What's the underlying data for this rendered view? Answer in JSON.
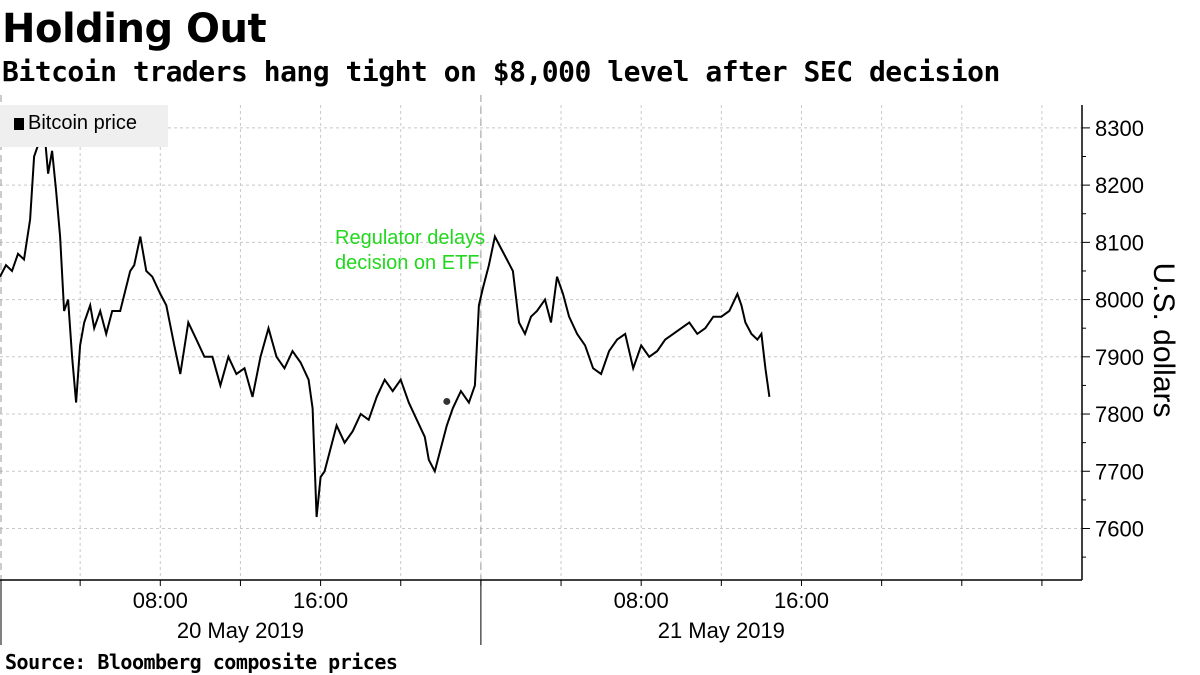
{
  "title": "Holding Out",
  "subtitle": "Bitcoin traders hang tight on $8,000 level after SEC decision",
  "source": "Source: Bloomberg composite prices",
  "colors": {
    "line": "#000000",
    "annotation": "#22d81e",
    "grid": "#c8c8c8",
    "legend_bg": "#efefef"
  },
  "chart_data": {
    "type": "line",
    "title": "Holding Out",
    "subtitle": "Bitcoin traders hang tight on $8,000 level after SEC decision",
    "ylabel": "U.S. dollars",
    "xlabel": "",
    "ylim": [
      7510,
      8340
    ],
    "yticks": [
      7600,
      7700,
      7800,
      7900,
      8000,
      8100,
      8200,
      8300
    ],
    "xlim_hours": [
      0,
      54
    ],
    "xticks": [
      {
        "hour": 8,
        "label": "08:00"
      },
      {
        "hour": 16,
        "label": "16:00"
      },
      {
        "hour": 32,
        "label": "08:00"
      },
      {
        "hour": 40,
        "label": "16:00"
      }
    ],
    "day_labels": [
      {
        "hour": 12,
        "label": "20 May 2019"
      },
      {
        "hour": 36,
        "label": "21 May 2019"
      }
    ],
    "legend": {
      "entries": [
        "Bitcoin price"
      ],
      "placement": "top-left"
    },
    "grid": true,
    "annotation": {
      "lines": [
        "Regulator delays",
        "decision on ETF"
      ],
      "hour": 22.3,
      "value": 7822
    },
    "series": [
      {
        "name": "Bitcoin price",
        "x_hours": [
          0,
          0.3,
          0.6,
          0.9,
          1.2,
          1.5,
          1.7,
          2.0,
          2.2,
          2.4,
          2.6,
          2.8,
          3.0,
          3.2,
          3.4,
          3.6,
          3.8,
          4.0,
          4.2,
          4.5,
          4.7,
          5.0,
          5.3,
          5.6,
          6.0,
          6.5,
          6.7,
          7.0,
          7.3,
          7.6,
          8.0,
          8.3,
          8.7,
          9.0,
          9.4,
          9.8,
          10.2,
          10.6,
          11.0,
          11.4,
          11.8,
          12.2,
          12.6,
          13.0,
          13.4,
          13.8,
          14.2,
          14.6,
          15.0,
          15.4,
          15.6,
          15.8,
          16.0,
          16.2,
          16.5,
          16.8,
          17.2,
          17.6,
          18.0,
          18.4,
          18.8,
          19.2,
          19.6,
          20.0,
          20.4,
          20.8,
          21.2,
          21.4,
          21.7,
          22.0,
          22.3,
          22.6,
          23.0,
          23.4,
          23.7,
          23.9,
          24.1,
          24.4,
          24.7,
          25.0,
          25.3,
          25.6,
          25.9,
          26.2,
          26.5,
          26.8,
          27.2,
          27.5,
          27.8,
          28.1,
          28.4,
          28.8,
          29.2,
          29.6,
          30.0,
          30.4,
          30.8,
          31.2,
          31.6,
          32.0,
          32.4,
          32.8,
          33.2,
          33.6,
          34.0,
          34.4,
          34.8,
          35.2,
          35.6,
          36.0,
          36.4,
          36.8,
          37.0,
          37.2,
          37.5,
          37.8,
          38.0,
          38.2,
          38.4
        ],
        "values": [
          8040,
          8060,
          8050,
          8080,
          8070,
          8140,
          8250,
          8280,
          8300,
          8220,
          8260,
          8190,
          8110,
          7980,
          8000,
          7900,
          7820,
          7920,
          7960,
          7990,
          7950,
          7980,
          7940,
          7980,
          7980,
          8050,
          8060,
          8110,
          8050,
          8040,
          8010,
          7990,
          7920,
          7870,
          7960,
          7930,
          7900,
          7900,
          7850,
          7900,
          7870,
          7880,
          7830,
          7900,
          7950,
          7900,
          7880,
          7910,
          7890,
          7860,
          7810,
          7620,
          7690,
          7700,
          7740,
          7780,
          7750,
          7770,
          7800,
          7790,
          7830,
          7860,
          7840,
          7860,
          7820,
          7790,
          7760,
          7720,
          7700,
          7740,
          7780,
          7810,
          7840,
          7820,
          7850,
          7990,
          8020,
          8060,
          8110,
          8090,
          8070,
          8050,
          7960,
          7940,
          7970,
          7980,
          8000,
          7960,
          8040,
          8010,
          7970,
          7940,
          7920,
          7880,
          7870,
          7910,
          7930,
          7940,
          7880,
          7920,
          7900,
          7910,
          7930,
          7940,
          7950,
          7960,
          7940,
          7950,
          7970,
          7970,
          7980,
          8010,
          7990,
          7960,
          7940,
          7930,
          7940,
          7880,
          7830
        ]
      }
    ]
  }
}
